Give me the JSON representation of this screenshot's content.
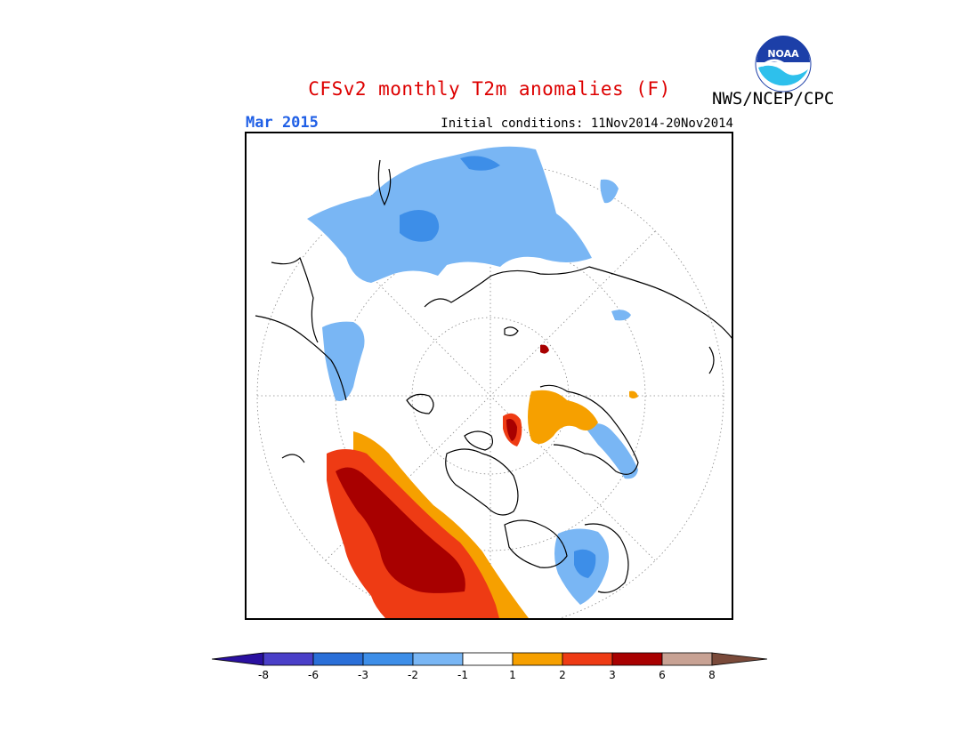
{
  "header": {
    "title": "CFSv2 monthly T2m anomalies (F)",
    "agency": "NWS/NCEP/CPC",
    "month": "Mar 2015",
    "initial_conditions": "Initial conditions: 11Nov2014-20Nov2014"
  },
  "logo": {
    "icon": "noaa-logo-icon",
    "text": "NOAA"
  },
  "colors": {
    "title": "#dd0000",
    "month": "#1f5fe6",
    "lt_m8": "#2a10a0",
    "m8_m6": "#4a3fc8",
    "m6_m3": "#2a6fd8",
    "m3_m2": "#3d8ee8",
    "m2_m1": "#79b6f4",
    "m1_1": "#ffffff",
    "p1_2": "#f6a000",
    "p2_3": "#ee3b14",
    "p3_6": "#a80000",
    "p6_8": "#c8a294",
    "gt_8": "#7a4a3a"
  },
  "colorbar": {
    "ticks": [
      "-8",
      "-6",
      "-3",
      "-2",
      "-1",
      "1",
      "2",
      "3",
      "6",
      "8"
    ]
  }
}
